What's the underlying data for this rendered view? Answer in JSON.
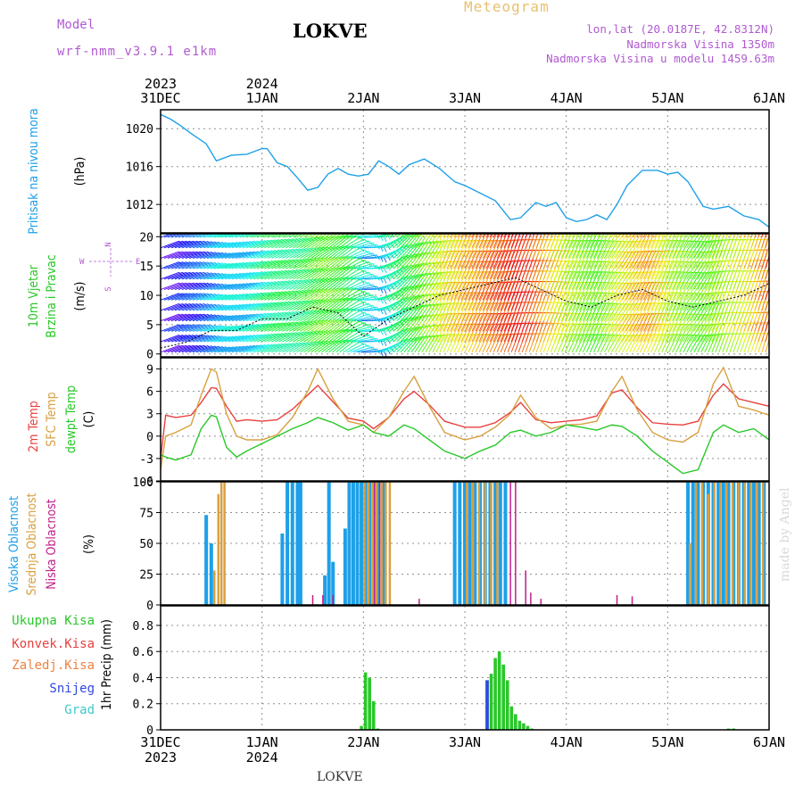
{
  "header": {
    "model_label": "Model",
    "model_value": "wrf-nmm_v3.9.1  e1km",
    "title": "LOKVE",
    "product": "Meteogram",
    "location_line": "lon,lat (20.0187E, 42.8312N)",
    "elevation_line": "Nadmorska Visina 1350m",
    "model_elevation_line": "Nadmorska Visina u modelu 1459.63m",
    "footer_title": "LOKVE",
    "signature": "made by Angel"
  },
  "colors": {
    "pressure": "#1ea0e8",
    "temp2m": "#e84040",
    "sfctemp": "#d8a040",
    "dewpt": "#28c828",
    "cloud_high": "#1ea0e8",
    "cloud_mid": "#d8a040",
    "cloud_low": "#c0208a",
    "precip_total": "#28c828",
    "precip_conv": "#e84040",
    "precip_frozen": "#f08040",
    "precip_snow": "#3048e0",
    "precip_graupel": "#40c8c8",
    "grid": "#909090",
    "label_purple": "#b05ad0"
  },
  "time_axis": {
    "top_labels": [
      {
        "year": "2023",
        "day": "31DEC"
      },
      {
        "year": "2024",
        "day": "1JAN"
      },
      {
        "year": "",
        "day": "2JAN"
      },
      {
        "year": "",
        "day": "3JAN"
      },
      {
        "year": "",
        "day": "4JAN"
      },
      {
        "year": "",
        "day": "5JAN"
      },
      {
        "year": "",
        "day": "6JAN"
      }
    ],
    "bottom_labels": [
      {
        "day": "31DEC",
        "year": "2023"
      },
      {
        "day": "1JAN",
        "year": "2024"
      },
      {
        "day": "2JAN",
        "year": ""
      },
      {
        "day": "3JAN",
        "year": ""
      },
      {
        "day": "4JAN",
        "year": ""
      },
      {
        "day": "5JAN",
        "year": ""
      },
      {
        "day": "6JAN",
        "year": ""
      }
    ]
  },
  "panels": {
    "pressure": {
      "ylabel_colored": "Pritisak na nivou mora",
      "unit": "(hPa)"
    },
    "wind": {
      "ylabel_1": "10m Vjetar",
      "ylabel_2": "Brzina i Pravac",
      "unit": "(m/s)",
      "compass": {
        "n": "N",
        "s": "S",
        "w": "W",
        "e": "E"
      }
    },
    "temp": {
      "ylabel_1": "2m Temp",
      "ylabel_2": "SFC Temp",
      "ylabel_3": "dewpt Temp",
      "unit": "(C)"
    },
    "cloud": {
      "ylabel_1": "Visoka Oblacnost",
      "ylabel_2": "Srednja Oblacnost",
      "ylabel_3": "Niska Oblacnost",
      "unit": "(%)"
    },
    "precip": {
      "legend": [
        "Ukupna Kisa",
        "Konvek.Kisa",
        "Zaledj.Kisa",
        "Snijeg",
        "Grad"
      ],
      "unit": "1hr Precip (mm)"
    }
  },
  "chart_data": [
    {
      "type": "line",
      "name": "pressure",
      "x_unit": "days since 31DEC 00 UTC",
      "ylim": [
        1009,
        1022
      ],
      "yticks": [
        "1012",
        "1016",
        "1020"
      ],
      "ytick_values": [
        1012,
        1016,
        1020
      ],
      "x": [
        0,
        0.1,
        0.2,
        0.3,
        0.45,
        0.55,
        0.7,
        0.85,
        1.0,
        1.05,
        1.15,
        1.25,
        1.35,
        1.45,
        1.55,
        1.65,
        1.75,
        1.85,
        1.95,
        2.05,
        2.15,
        2.25,
        2.35,
        2.45,
        2.6,
        2.75,
        2.9,
        3.0,
        3.15,
        3.3,
        3.45,
        3.55,
        3.7,
        3.8,
        3.9,
        4.0,
        4.1,
        4.2,
        4.3,
        4.4,
        4.5,
        4.6,
        4.75,
        4.9,
        5.0,
        5.1,
        5.2,
        5.35,
        5.45,
        5.6,
        5.75,
        5.9,
        6.0
      ],
      "y": [
        1021.5,
        1021.0,
        1020.3,
        1019.5,
        1018.4,
        1016.6,
        1017.2,
        1017.3,
        1017.9,
        1017.9,
        1016.4,
        1016.0,
        1014.8,
        1013.5,
        1013.8,
        1015.2,
        1015.8,
        1015.2,
        1015.0,
        1015.2,
        1016.6,
        1016.0,
        1015.2,
        1016.2,
        1016.8,
        1015.8,
        1014.4,
        1014.0,
        1013.2,
        1012.4,
        1010.4,
        1010.6,
        1012.2,
        1011.8,
        1012.2,
        1010.6,
        1010.2,
        1010.4,
        1010.9,
        1010.4,
        1012.0,
        1014.0,
        1015.6,
        1015.6,
        1015.2,
        1015.4,
        1014.4,
        1011.8,
        1011.5,
        1011.8,
        1010.8,
        1010.4,
        1009.6
      ]
    },
    {
      "type": "scatter",
      "name": "wind",
      "x_unit": "days since 31DEC 00 UTC",
      "ylim": [
        -0.5,
        20.5
      ],
      "yticks": [
        "0",
        "5",
        "10",
        "15",
        "20"
      ],
      "ytick_values": [
        0,
        5,
        10,
        15,
        20
      ],
      "x": [
        0,
        0.25,
        0.5,
        0.75,
        1.0,
        1.25,
        1.5,
        1.75,
        2.0,
        2.25,
        2.5,
        2.75,
        3.0,
        3.25,
        3.5,
        3.75,
        4.0,
        4.25,
        4.5,
        4.75,
        5.0,
        5.25,
        5.5,
        5.75,
        6.0
      ],
      "speed": [
        1,
        2,
        4,
        4,
        6,
        6,
        8,
        7,
        3,
        6,
        8,
        10,
        11,
        12,
        13,
        11,
        9,
        8,
        10,
        11,
        9,
        8,
        9,
        10,
        12
      ],
      "direction_deg": [
        250,
        250,
        255,
        250,
        245,
        240,
        235,
        230,
        270,
        230,
        215,
        205,
        205,
        205,
        200,
        200,
        205,
        205,
        210,
        205,
        205,
        210,
        200,
        200,
        195
      ]
    },
    {
      "type": "line",
      "name": "temperature",
      "x_unit": "days since 31DEC 00 UTC",
      "ylim": [
        -6,
        10.5
      ],
      "yticks": [
        "-6",
        "-3",
        "0",
        "3",
        "6",
        "9"
      ],
      "ytick_values": [
        -6,
        -3,
        0,
        3,
        6,
        9
      ],
      "x": [
        0,
        0.05,
        0.15,
        0.3,
        0.4,
        0.5,
        0.55,
        0.65,
        0.75,
        0.85,
        1.0,
        1.15,
        1.3,
        1.45,
        1.55,
        1.7,
        1.85,
        2.0,
        2.1,
        2.25,
        2.4,
        2.5,
        2.65,
        2.8,
        3.0,
        3.15,
        3.3,
        3.45,
        3.55,
        3.7,
        3.85,
        4.0,
        4.15,
        4.3,
        4.45,
        4.55,
        4.7,
        4.85,
        5.0,
        5.15,
        5.3,
        5.45,
        5.55,
        5.7,
        5.85,
        6.0
      ],
      "series": [
        {
          "name": "2m Temp",
          "values": [
            -3.0,
            2.8,
            2.5,
            2.8,
            4.5,
            6.5,
            6.4,
            4.0,
            2.0,
            2.2,
            2.0,
            2.2,
            3.6,
            5.5,
            6.8,
            4.6,
            2.4,
            2.0,
            1.0,
            2.5,
            5.0,
            6.0,
            4.2,
            2.0,
            1.2,
            1.2,
            1.8,
            3.2,
            4.5,
            2.2,
            1.8,
            2.0,
            2.2,
            2.7,
            5.8,
            6.2,
            3.8,
            1.8,
            1.6,
            1.5,
            2.0,
            5.5,
            7.0,
            5.0,
            4.5,
            4.0
          ]
        },
        {
          "name": "SFC Temp",
          "values": [
            -4.5,
            0.0,
            0.5,
            1.5,
            5.5,
            9.0,
            8.6,
            3.0,
            0.0,
            -0.5,
            -0.5,
            0.2,
            2.5,
            6.0,
            9.0,
            5.0,
            2.0,
            1.5,
            0.5,
            2.5,
            6.0,
            8.0,
            4.0,
            0.5,
            -0.5,
            0.0,
            1.2,
            3.0,
            5.5,
            2.5,
            1.0,
            1.5,
            1.6,
            2.0,
            6.0,
            8.0,
            3.5,
            0.5,
            -0.5,
            -0.8,
            0.5,
            7.0,
            9.2,
            4.0,
            3.5,
            2.8
          ]
        },
        {
          "name": "dewpt Temp",
          "values": [
            -2.5,
            -2.8,
            -3.2,
            -2.5,
            1.0,
            2.8,
            2.6,
            -1.5,
            -2.8,
            -2.0,
            -1.0,
            0.0,
            1.0,
            1.8,
            2.5,
            1.8,
            0.8,
            1.5,
            0.5,
            0.0,
            1.5,
            1.0,
            -0.5,
            -2.0,
            -3.0,
            -2.0,
            -1.2,
            0.5,
            0.8,
            0.0,
            0.5,
            1.5,
            1.2,
            0.8,
            1.5,
            1.3,
            0.0,
            -2.0,
            -3.5,
            -5.0,
            -4.5,
            0.5,
            1.5,
            0.5,
            1.0,
            -0.5
          ]
        }
      ]
    },
    {
      "type": "bar",
      "name": "cloud",
      "x_unit": "days since 31DEC 00 UTC",
      "ylim": [
        0,
        100
      ],
      "yticks": [
        "0",
        "25",
        "50",
        "75",
        "100"
      ],
      "ytick_values": [
        0,
        25,
        50,
        75,
        100
      ],
      "series": [
        {
          "name": "Visoka Oblacnost",
          "x": [
            0.45,
            0.5,
            1.2,
            1.25,
            1.3,
            1.35,
            1.38,
            1.62,
            1.66,
            1.7,
            1.82,
            1.86,
            1.9,
            1.94,
            1.98,
            2.02,
            2.06,
            2.1,
            2.14,
            2.2,
            2.9,
            2.95,
            3.0,
            3.05,
            3.1,
            3.15,
            3.2,
            3.25,
            3.3,
            3.35,
            3.4,
            5.2,
            5.25,
            5.3,
            5.35,
            5.4,
            5.45,
            5.5,
            5.55,
            5.6,
            5.65,
            5.7,
            5.75,
            5.8,
            5.85,
            5.9,
            5.95
          ],
          "values": [
            73,
            50,
            58,
            100,
            100,
            100,
            100,
            24,
            100,
            35,
            62,
            100,
            100,
            100,
            100,
            100,
            100,
            100,
            100,
            100,
            100,
            100,
            100,
            100,
            100,
            100,
            100,
            100,
            100,
            100,
            100,
            100,
            100,
            100,
            100,
            100,
            100,
            100,
            100,
            100,
            100,
            100,
            100,
            100,
            100,
            100,
            100
          ]
        },
        {
          "name": "Srednja Oblacnost",
          "x": [
            0.53,
            0.57,
            0.6,
            0.63,
            2.01,
            2.05,
            2.09,
            2.13,
            2.18,
            2.22,
            2.26,
            3.02,
            3.08,
            3.14,
            3.2,
            3.26,
            3.32,
            5.22,
            5.28,
            5.34,
            5.4,
            5.46,
            5.52,
            5.58,
            5.64,
            5.7,
            5.76,
            5.82,
            5.88,
            5.94
          ],
          "values": [
            28,
            90,
            100,
            100,
            100,
            100,
            100,
            100,
            100,
            100,
            100,
            100,
            100,
            100,
            100,
            100,
            100,
            50,
            100,
            100,
            90,
            100,
            100,
            100,
            100,
            100,
            100,
            100,
            100,
            100
          ]
        },
        {
          "name": "Niska Oblacnost",
          "x": [
            1.5,
            1.6,
            1.7,
            2.11,
            2.16,
            2.55,
            3.45,
            3.5,
            3.6,
            3.65,
            3.75,
            4.5,
            4.65
          ],
          "values": [
            8,
            8,
            8,
            100,
            100,
            5,
            100,
            100,
            28,
            10,
            5,
            8,
            7
          ]
        }
      ]
    },
    {
      "type": "bar",
      "name": "precipitation",
      "x_unit": "days since 31DEC 00 UTC",
      "ylim": [
        0,
        0.95
      ],
      "yticks": [
        "0",
        "0.2",
        "0.4",
        "0.6",
        "0.8"
      ],
      "ytick_values": [
        0,
        0.2,
        0.4,
        0.6,
        0.8
      ],
      "series": [
        {
          "name": "Ukupna Kisa",
          "x": [
            1.98,
            2.02,
            2.06,
            2.1,
            2.14,
            3.22,
            3.26,
            3.3,
            3.34,
            3.38,
            3.42,
            3.46,
            3.5,
            3.54,
            3.58,
            3.62,
            3.66,
            5.6,
            5.65
          ],
          "values": [
            0.03,
            0.44,
            0.4,
            0.22,
            0.01,
            0.38,
            0.43,
            0.55,
            0.6,
            0.5,
            0.38,
            0.18,
            0.12,
            0.07,
            0.05,
            0.03,
            0.01,
            0.01,
            0.01
          ]
        },
        {
          "name": "Snijeg",
          "x": [
            3.22
          ],
          "values": [
            0.38
          ]
        }
      ]
    }
  ]
}
